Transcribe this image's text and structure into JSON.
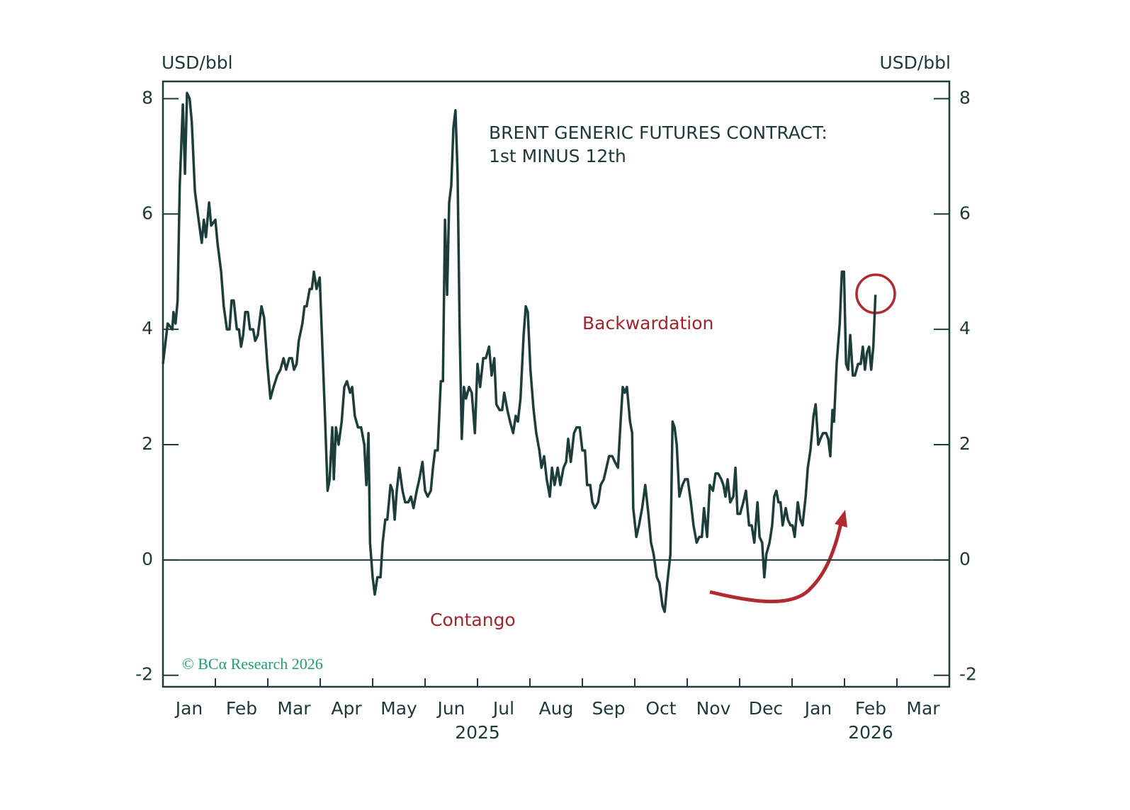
{
  "chart_data": {
    "type": "line",
    "title": "BRENT GENERIC FUTURES CONTRACT:",
    "subtitle": "1st MINUS 12th",
    "y_label": "USD/bbl",
    "y2_label": "USD/bbl",
    "annotations": {
      "backwardation": "Backwardation",
      "contango": "Contango",
      "source": "© BCα Research 2026"
    },
    "color": "#1c3d3a",
    "categories": [
      "Jan",
      "Feb",
      "Mar",
      "Apr",
      "May",
      "Jun",
      "Jul",
      "Aug",
      "Sep",
      "Oct",
      "Nov",
      "Dec",
      "Jan",
      "Feb",
      "Mar"
    ],
    "x_groups": [
      {
        "value": 6.0,
        "label": "2025"
      },
      {
        "value": 13.5,
        "label": "2026"
      }
    ],
    "xlim": [
      0,
      15
    ],
    "ylim": [
      -2.2,
      8.3
    ],
    "yticks": [
      -2,
      0,
      2,
      4,
      6,
      8
    ],
    "y2lim": [
      -2.2,
      8.3
    ],
    "y2ticks": [
      -2,
      0,
      2,
      4,
      6,
      8
    ],
    "hline": 0,
    "x": [
      0.0,
      0.09,
      0.18,
      0.2,
      0.24,
      0.28,
      0.32,
      0.38,
      0.42,
      0.46,
      0.51,
      0.55,
      0.61,
      0.68,
      0.74,
      0.78,
      0.82,
      0.88,
      0.92,
      1.0,
      1.04,
      1.11,
      1.16,
      1.22,
      1.27,
      1.31,
      1.35,
      1.41,
      1.45,
      1.49,
      1.53,
      1.57,
      1.62,
      1.66,
      1.72,
      1.76,
      1.81,
      1.88,
      1.93,
      1.99,
      2.05,
      2.11,
      2.18,
      2.24,
      2.3,
      2.35,
      2.41,
      2.46,
      2.5,
      2.55,
      2.59,
      2.66,
      2.7,
      2.74,
      2.8,
      2.84,
      2.88,
      2.93,
      2.99,
      3.04,
      3.09,
      3.14,
      3.18,
      3.23,
      3.26,
      3.3,
      3.35,
      3.41,
      3.46,
      3.51,
      3.57,
      3.61,
      3.66,
      3.72,
      3.78,
      3.84,
      3.88,
      3.92,
      3.95,
      4.0,
      4.04,
      4.09,
      4.15,
      4.19,
      4.24,
      4.28,
      4.34,
      4.38,
      4.42,
      4.46,
      4.51,
      4.57,
      4.62,
      4.68,
      4.73,
      4.78,
      4.84,
      4.89,
      4.95,
      5.0,
      5.05,
      5.11,
      5.15,
      5.19,
      5.24,
      5.3,
      5.34,
      5.38,
      5.42,
      5.46,
      5.5,
      5.54,
      5.58,
      5.62,
      5.66,
      5.7,
      5.74,
      5.78,
      5.84,
      5.89,
      5.95,
      6.0,
      6.05,
      6.11,
      6.16,
      6.22,
      6.27,
      6.32,
      6.36,
      6.42,
      6.47,
      6.51,
      6.57,
      6.62,
      6.68,
      6.73,
      6.77,
      6.82,
      6.88,
      6.92,
      6.96,
      7.01,
      7.07,
      7.12,
      7.18,
      7.22,
      7.27,
      7.32,
      7.38,
      7.42,
      7.47,
      7.53,
      7.58,
      7.64,
      7.69,
      7.73,
      7.78,
      7.84,
      7.89,
      7.95,
      8.0,
      8.05,
      8.09,
      8.15,
      8.19,
      8.24,
      8.3,
      8.35,
      8.41,
      8.46,
      8.51,
      8.57,
      8.62,
      8.68,
      8.73,
      8.77,
      8.81,
      8.85,
      8.91,
      8.95,
      8.97,
      9.03,
      9.08,
      9.14,
      9.2,
      9.26,
      9.31,
      9.36,
      9.42,
      9.47,
      9.53,
      9.57,
      9.62,
      9.68,
      9.72,
      9.76,
      9.8,
      9.85,
      9.91,
      9.96,
      10.01,
      10.07,
      10.12,
      10.18,
      10.23,
      10.28,
      10.32,
      10.38,
      10.43,
      10.49,
      10.54,
      10.59,
      10.65,
      10.69,
      10.73,
      10.77,
      10.82,
      10.88,
      10.92,
      10.96,
      11.01,
      11.07,
      11.12,
      11.18,
      11.23,
      11.28,
      11.34,
      11.38,
      11.43,
      11.47,
      11.51,
      11.57,
      11.62,
      11.66,
      11.7,
      11.74,
      11.78,
      11.82,
      11.88,
      11.92,
      11.97,
      12.01,
      12.05,
      12.11,
      12.16,
      12.2,
      12.26,
      12.3,
      12.35,
      12.41,
      12.45,
      12.5,
      12.54,
      12.59,
      12.65,
      12.69,
      12.73,
      12.77,
      12.8,
      12.85,
      12.91,
      12.95,
      12.99,
      13.03,
      13.07,
      13.11,
      13.16,
      13.2,
      13.26,
      13.31,
      13.35,
      13.39,
      13.43,
      13.47,
      13.51,
      13.55,
      13.59
    ],
    "values": [
      3.4,
      4.1,
      4.0,
      4.3,
      4.1,
      4.5,
      6.5,
      7.9,
      6.7,
      8.1,
      8.0,
      7.6,
      6.4,
      5.9,
      5.5,
      5.9,
      5.6,
      6.2,
      5.8,
      5.9,
      5.5,
      5.0,
      4.4,
      4.0,
      4.0,
      4.5,
      4.5,
      4.0,
      4.0,
      3.7,
      3.9,
      4.3,
      4.3,
      4.0,
      4.0,
      3.8,
      3.9,
      4.4,
      4.2,
      3.4,
      2.8,
      3.0,
      3.2,
      3.3,
      3.5,
      3.3,
      3.5,
      3.5,
      3.3,
      3.4,
      3.8,
      4.1,
      4.4,
      4.4,
      4.7,
      4.7,
      5.0,
      4.7,
      4.9,
      3.7,
      2.5,
      1.2,
      1.4,
      2.3,
      1.4,
      2.3,
      2.0,
      2.4,
      3.0,
      3.1,
      2.9,
      3.0,
      2.5,
      2.3,
      2.3,
      2.0,
      1.3,
      2.2,
      0.3,
      -0.3,
      -0.6,
      -0.3,
      -0.3,
      0.3,
      0.7,
      0.7,
      1.3,
      1.2,
      0.7,
      1.2,
      1.6,
      1.2,
      1.0,
      1.0,
      1.1,
      0.9,
      1.2,
      1.4,
      1.7,
      1.2,
      1.1,
      1.2,
      1.6,
      1.9,
      1.9,
      3.1,
      3.1,
      5.9,
      4.6,
      6.2,
      6.5,
      7.5,
      7.8,
      6.7,
      4.0,
      2.1,
      3.0,
      2.8,
      3.0,
      2.9,
      2.2,
      3.4,
      3.0,
      3.5,
      3.5,
      3.7,
      3.2,
      3.5,
      2.7,
      2.6,
      2.6,
      2.9,
      2.6,
      2.4,
      2.2,
      2.5,
      2.4,
      2.8,
      3.9,
      4.4,
      4.3,
      3.3,
      2.6,
      2.2,
      1.9,
      1.6,
      1.8,
      1.4,
      1.1,
      1.6,
      1.3,
      1.6,
      1.3,
      1.6,
      1.7,
      2.1,
      1.7,
      2.2,
      2.3,
      2.3,
      1.9,
      1.9,
      1.3,
      1.3,
      1.0,
      0.9,
      1.0,
      1.3,
      1.4,
      1.6,
      1.8,
      1.8,
      1.7,
      1.6,
      2.4,
      3.0,
      2.9,
      3.0,
      2.4,
      2.2,
      0.9,
      0.4,
      0.6,
      0.9,
      1.3,
      0.8,
      0.3,
      0.1,
      -0.3,
      -0.4,
      -0.8,
      -0.9,
      -0.4,
      0.1,
      2.4,
      2.3,
      2.0,
      1.1,
      1.3,
      1.4,
      1.4,
      1.0,
      0.6,
      0.3,
      0.4,
      0.4,
      0.9,
      0.4,
      1.3,
      1.2,
      1.5,
      1.5,
      1.4,
      1.3,
      1.1,
      1.4,
      1.0,
      1.1,
      1.6,
      0.8,
      0.8,
      1.0,
      1.2,
      0.6,
      0.6,
      0.3,
      1.0,
      0.4,
      0.3,
      -0.3,
      0.1,
      0.3,
      0.6,
      1.1,
      1.2,
      1.0,
      1.0,
      0.6,
      0.9,
      0.7,
      0.6,
      0.6,
      0.4,
      1.0,
      0.7,
      0.6,
      1.1,
      1.6,
      1.9,
      2.5,
      2.7,
      2.0,
      2.1,
      2.2,
      2.2,
      2.1,
      1.8,
      2.6,
      2.4,
      3.4,
      4.1,
      5.0,
      5.0,
      3.4,
      3.3,
      3.9,
      3.2,
      3.2,
      3.4,
      3.4,
      3.7,
      3.3,
      3.6,
      3.7,
      3.3,
      3.7,
      4.6
    ]
  }
}
